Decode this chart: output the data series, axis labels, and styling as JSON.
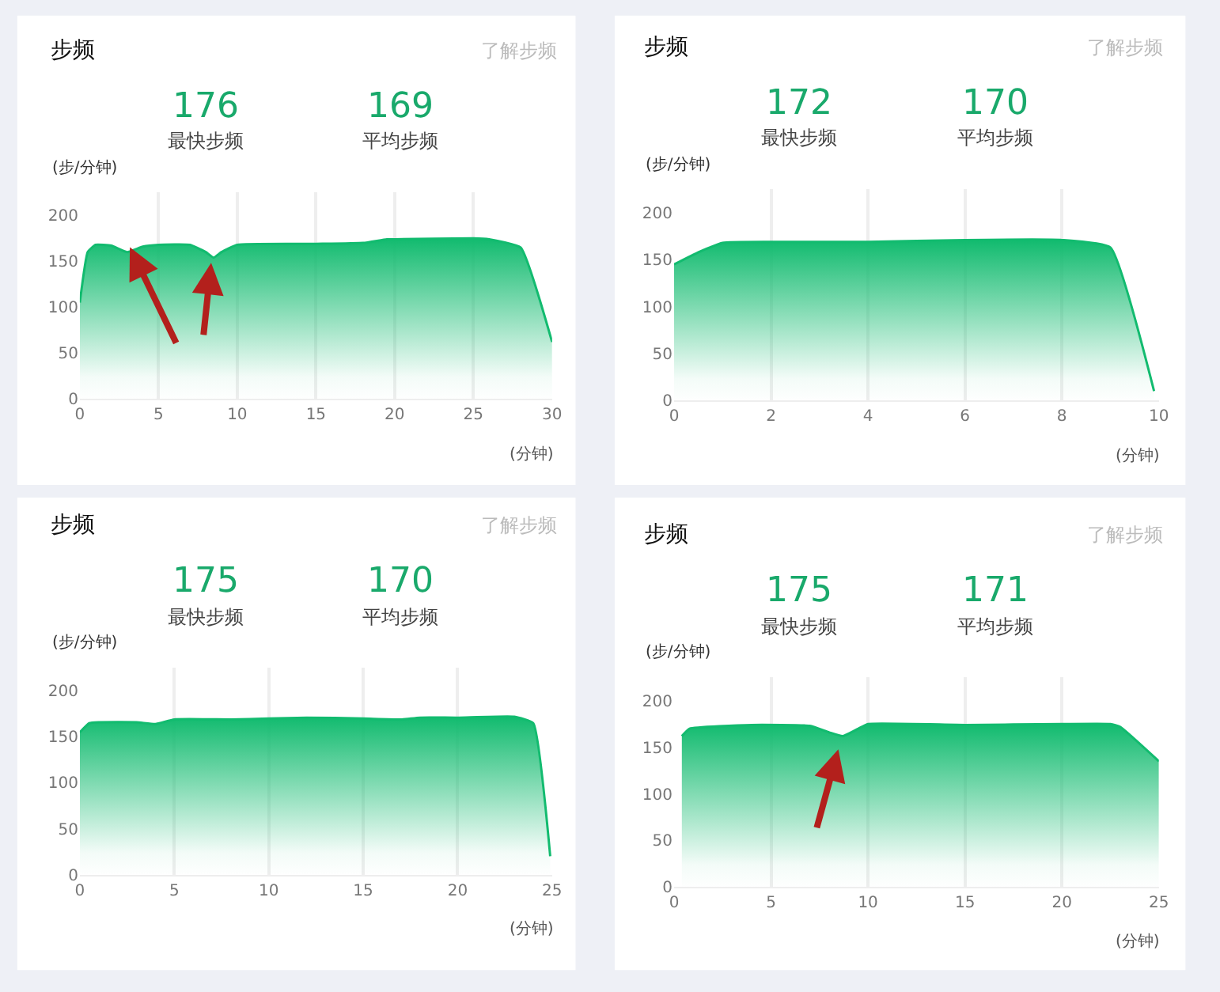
{
  "chart_data": [
    {
      "type": "area",
      "title": "步频",
      "xlabel": "(分钟)",
      "ylabel": "(步/分钟)",
      "annotations": [
        "了解步频",
        "176",
        "最快步频",
        "169",
        "平均步频"
      ],
      "x": [
        0,
        0.5,
        1,
        2,
        3,
        4,
        5,
        7,
        8,
        8.5,
        9,
        10,
        15,
        18,
        19.5,
        20,
        25,
        26,
        28,
        30
      ],
      "series": [
        {
          "color": "#12bb6f",
          "values": [
            105,
            160,
            168,
            167,
            160,
            166,
            168,
            168,
            160,
            154,
            160,
            168,
            169,
            170,
            174,
            174,
            175,
            174,
            165,
            62
          ]
        }
      ],
      "xlim": [
        0,
        30
      ],
      "ylim": [
        0,
        225
      ],
      "xticks": [
        0,
        5,
        10,
        15,
        20,
        25,
        30
      ],
      "yticks": [
        0,
        50,
        100,
        150,
        200
      ],
      "grid": "x"
    },
    {
      "type": "area",
      "title": "步频",
      "xlabel": "(分钟)",
      "ylabel": "(步/分钟)",
      "annotations": [
        "了解步频",
        "172",
        "最快步频",
        "170",
        "平均步频"
      ],
      "x": [
        0,
        0.5,
        1,
        2,
        4,
        6,
        8,
        9,
        9.9
      ],
      "series": [
        {
          "color": "#12bb6f",
          "values": [
            145,
            158,
            168,
            169,
            169,
            171,
            171,
            163,
            10
          ]
        }
      ],
      "xlim": [
        0,
        10
      ],
      "ylim": [
        0,
        225
      ],
      "xticks": [
        0,
        2,
        4,
        6,
        8,
        10
      ],
      "yticks": [
        0,
        50,
        100,
        150,
        200
      ],
      "grid": "x"
    },
    {
      "type": "area",
      "title": "步频",
      "xlabel": "(分钟)",
      "ylabel": "(步/分钟)",
      "annotations": [
        "了解步频",
        "175",
        "最快步频",
        "170",
        "平均步频"
      ],
      "x": [
        0,
        0.5,
        1,
        3,
        4,
        5,
        8,
        10,
        12,
        15,
        17,
        18,
        20,
        23,
        24,
        24.9
      ],
      "series": [
        {
          "color": "#12bb6f",
          "values": [
            155,
            165,
            166,
            166,
            164,
            169,
            169,
            170,
            171,
            170,
            169,
            171,
            171,
            172,
            165,
            20
          ]
        }
      ],
      "xlim": [
        0,
        25
      ],
      "ylim": [
        0,
        225
      ],
      "xticks": [
        0,
        5,
        10,
        15,
        20,
        25
      ],
      "yticks": [
        0,
        50,
        100,
        150,
        200
      ],
      "grid": "x"
    },
    {
      "type": "area",
      "title": "步频",
      "xlabel": "(分钟)",
      "ylabel": "(步/分钟)",
      "annotations": [
        "了解步频",
        "175",
        "最快步频",
        "171",
        "平均步频"
      ],
      "x": [
        0.4,
        0.8,
        4,
        7,
        8,
        8.7,
        9.5,
        10,
        15,
        20,
        22.5,
        23,
        25
      ],
      "series": [
        {
          "color": "#12bb6f",
          "values": [
            162,
            170,
            174,
            173,
            166,
            162,
            170,
            175,
            174,
            175,
            175,
            172,
            135
          ]
        }
      ],
      "xlim": [
        0,
        25
      ],
      "ylim": [
        0,
        225
      ],
      "xticks": [
        0,
        5,
        10,
        15,
        20,
        25
      ],
      "yticks": [
        0,
        50,
        100,
        150,
        200
      ],
      "grid": "x"
    }
  ]
}
